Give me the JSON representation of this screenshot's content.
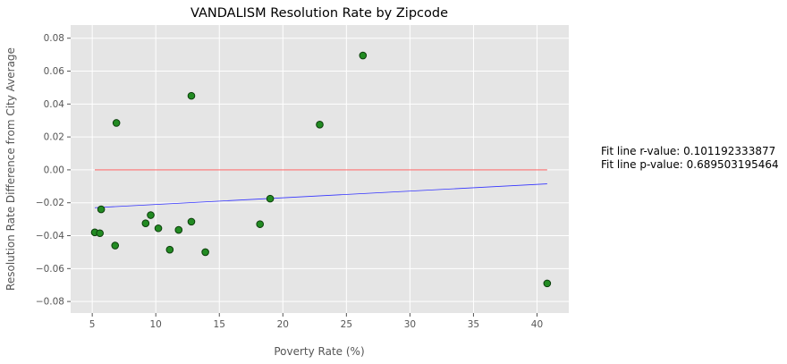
{
  "chart_data": {
    "type": "scatter",
    "title": "VANDALISM Resolution Rate by Zipcode",
    "xlabel": "Poverty Rate (%)",
    "ylabel": "Resolution Rate Difference from City Average",
    "xlim": [
      3.3,
      42.5
    ],
    "ylim": [
      -0.087,
      0.088
    ],
    "xticks": [
      5,
      10,
      15,
      20,
      25,
      30,
      35,
      40
    ],
    "yticks": [
      -0.08,
      -0.06,
      -0.04,
      -0.02,
      0.0,
      0.02,
      0.04,
      0.06,
      0.08
    ],
    "xtick_labels": [
      "5",
      "10",
      "15",
      "20",
      "25",
      "30",
      "35",
      "40"
    ],
    "ytick_labels": [
      "−0.08",
      "−0.06",
      "−0.04",
      "−0.02",
      "0.00",
      "0.02",
      "0.04",
      "0.06",
      "0.08"
    ],
    "grid": true,
    "points": [
      {
        "x": 5.2,
        "y": -0.038
      },
      {
        "x": 5.6,
        "y": -0.0385
      },
      {
        "x": 5.7,
        "y": -0.024
      },
      {
        "x": 6.8,
        "y": -0.046
      },
      {
        "x": 6.9,
        "y": 0.0285
      },
      {
        "x": 9.2,
        "y": -0.0325
      },
      {
        "x": 9.6,
        "y": -0.0275
      },
      {
        "x": 10.2,
        "y": -0.0355
      },
      {
        "x": 11.1,
        "y": -0.0485
      },
      {
        "x": 11.8,
        "y": -0.0365
      },
      {
        "x": 12.8,
        "y": 0.045
      },
      {
        "x": 12.8,
        "y": -0.0315
      },
      {
        "x": 13.9,
        "y": -0.05
      },
      {
        "x": 18.2,
        "y": -0.033
      },
      {
        "x": 19.0,
        "y": -0.0175
      },
      {
        "x": 22.9,
        "y": 0.0275
      },
      {
        "x": 26.3,
        "y": 0.0695
      },
      {
        "x": 40.8,
        "y": -0.069
      }
    ],
    "reference_line": {
      "x": [
        5.2,
        40.8
      ],
      "y": [
        0.0,
        0.0
      ],
      "color": "#ff4d4d"
    },
    "fit_line": {
      "x": [
        5.2,
        40.8
      ],
      "y": [
        -0.023,
        -0.0085
      ],
      "color": "#3333ff"
    },
    "marker_color": "#228b22",
    "marker_edge": "#0b3d0b",
    "background": "#e5e5e5",
    "grid_color": "#ffffff"
  },
  "annotations": {
    "r_value": "Fit line r-value: 0.101192333877",
    "p_value": "Fit line p-value: 0.689503195464"
  }
}
